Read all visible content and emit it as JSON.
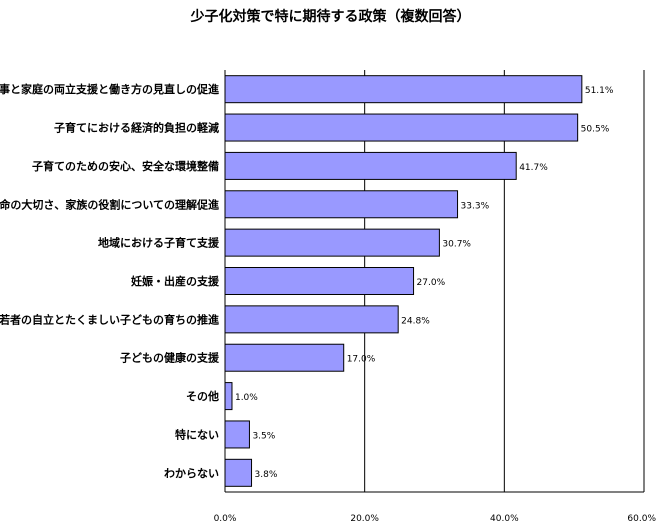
{
  "chart_data": {
    "type": "bar",
    "orientation": "horizontal",
    "title": "少子化対策で特に期待する政策（複数回答）",
    "categories": [
      "仕事と家庭の両立支援と働き方の見直しの促進",
      "子育てにおける経済的負担の軽減",
      "子育てのための安心、安全な環境整備",
      "生命の大切さ、家族の役割についての理解促進",
      "地域における子育て支援",
      "妊娠・出産の支援",
      "若者の自立とたくましい子どもの育ちの推進",
      "子どもの健康の支援",
      "その他",
      "特にない",
      "わからない"
    ],
    "values": [
      51.1,
      50.5,
      41.7,
      33.3,
      30.7,
      27.0,
      24.8,
      17.0,
      1.0,
      3.5,
      3.8
    ],
    "value_labels": [
      "51.1%",
      "50.5%",
      "41.7%",
      "33.3%",
      "30.7%",
      "27.0%",
      "24.8%",
      "17.0%",
      "1.0%",
      "3.5%",
      "3.8%"
    ],
    "xlim": [
      0,
      60
    ],
    "xticks": [
      0,
      20,
      40,
      60
    ],
    "xtick_labels": [
      "0.0%",
      "20.0%",
      "40.0%",
      "60.0%"
    ],
    "grid": true,
    "bar_color": "#9999ff",
    "bar_edge_color": "#000000"
  }
}
